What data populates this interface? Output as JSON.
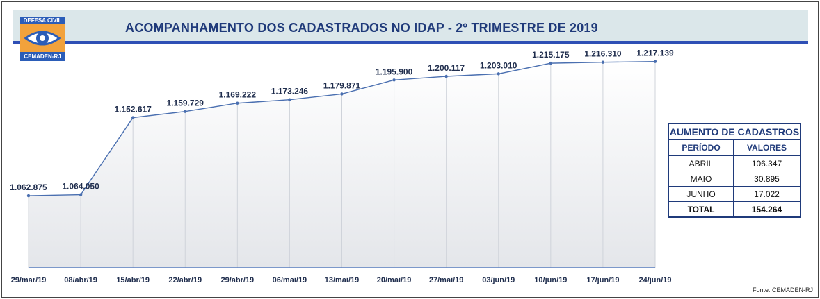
{
  "header": {
    "title": "ACOMPANHAMENTO DOS CADASTRADOS NO IDAP - 2º TRIMESTRE DE 2019"
  },
  "logo": {
    "top_text": "DEFESA CIVIL",
    "bottom_text": "CEMADEN-RJ"
  },
  "chart_data": {
    "type": "line",
    "title": "ACOMPANHAMENTO DOS CADASTRADOS NO IDAP - 2º TRIMESTRE DE 2019",
    "categories": [
      "29/mar/19",
      "08/abr/19",
      "15/abr/19",
      "22/abr/19",
      "29/abr/19",
      "06/mai/19",
      "13/mai/19",
      "20/mai/19",
      "27/mai/19",
      "03/jun/19",
      "10/jun/19",
      "17/jun/19",
      "24/jun/19"
    ],
    "values": [
      1062875,
      1064050,
      1152617,
      1159729,
      1169222,
      1173246,
      1179871,
      1195900,
      1200117,
      1203010,
      1215175,
      1216310,
      1217139
    ],
    "labels": [
      "1.062.875",
      "1.064.050",
      "1.152.617",
      "1.159.729",
      "1.169.222",
      "1.173.246",
      "1.179.871",
      "1.195.900",
      "1.200.117",
      "1.203.010",
      "1.215.175",
      "1.216.310",
      "1.217.139"
    ],
    "ylim": [
      980000,
      1240000
    ],
    "xlabel": "",
    "ylabel": "",
    "grid": "vertical",
    "line_color": "#4a6fb0",
    "label_color": "#1f2d4d"
  },
  "summary_table": {
    "title": "AUMENTO DE CADASTROS",
    "col_period": "PERÍODO",
    "col_values": "VALORES",
    "rows": [
      {
        "period": "ABRIL",
        "value": "106.347"
      },
      {
        "period": "MAIO",
        "value": "30.895"
      },
      {
        "period": "JUNHO",
        "value": "17.022"
      }
    ],
    "total_label": "TOTAL",
    "total_value": "154.264"
  },
  "source": "Fonte: CEMADEN-RJ"
}
